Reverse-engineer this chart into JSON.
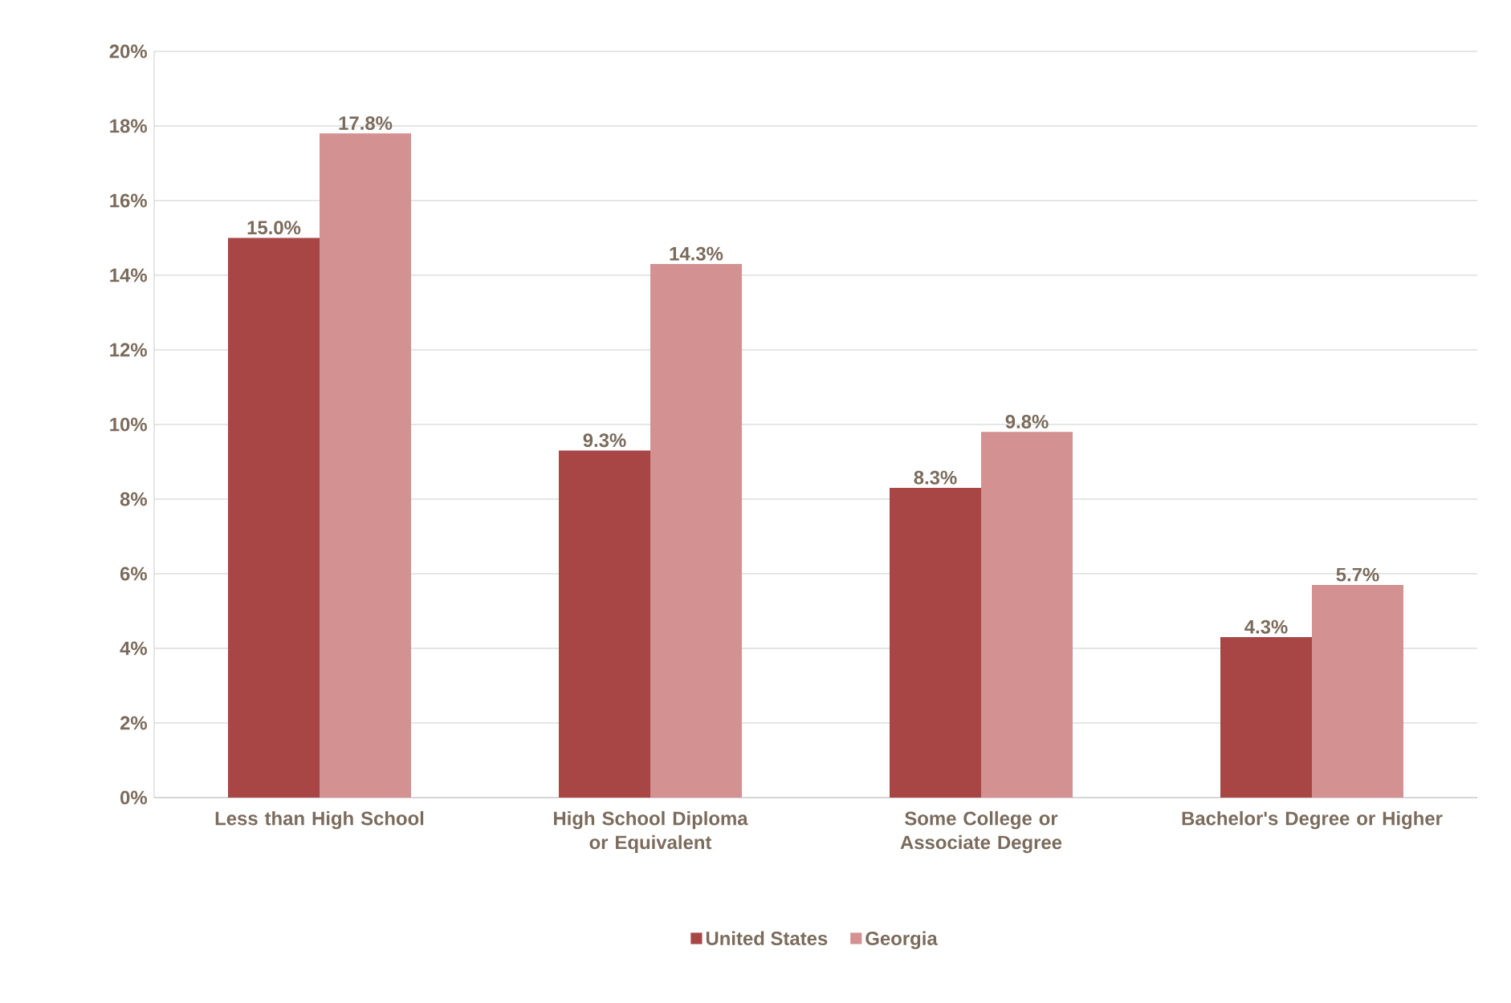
{
  "chart_data": {
    "type": "bar",
    "categories": [
      "Less than High School",
      "High School Diploma or Equivalent",
      "Some College or Associate Degree",
      "Bachelor's Degree or Higher"
    ],
    "series": [
      {
        "name": "United States",
        "color": "#a84545",
        "values": [
          15.0,
          9.3,
          8.3,
          4.3
        ],
        "value_labels": [
          "15.0%",
          "9.3%",
          "8.3%",
          "4.3%"
        ]
      },
      {
        "name": "Georgia",
        "color": "#d39191",
        "values": [
          17.8,
          14.3,
          9.8,
          5.7
        ],
        "value_labels": [
          "17.8%",
          "14.3%",
          "9.8%",
          "5.7%"
        ]
      }
    ],
    "ylim": [
      0,
      20
    ],
    "yticks": [
      {
        "value": 0,
        "label": "0%"
      },
      {
        "value": 2,
        "label": "2%"
      },
      {
        "value": 4,
        "label": "4%"
      },
      {
        "value": 6,
        "label": "6%"
      },
      {
        "value": 8,
        "label": "8%"
      },
      {
        "value": 10,
        "label": "10%"
      },
      {
        "value": 12,
        "label": "12%"
      },
      {
        "value": 14,
        "label": "14%"
      },
      {
        "value": 16,
        "label": "16%"
      },
      {
        "value": 18,
        "label": "18%"
      },
      {
        "value": 20,
        "label": "20%"
      }
    ],
    "grid": "y",
    "legend": "bottom"
  }
}
